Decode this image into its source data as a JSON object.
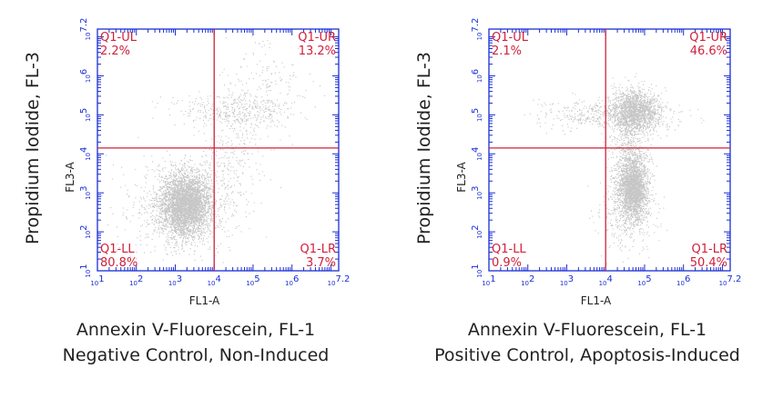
{
  "chart_data": [
    {
      "type": "scatter",
      "subtype": "flow-cytometry-density-quadrant",
      "xlabel": "FL1-A",
      "ylabel": "FL3-A",
      "outer_ylabel": "Propidium Iodide, FL-3",
      "caption_line1": "Annexin V-Fluorescein, FL-1",
      "caption_line2": "Negative Control, Non-Induced",
      "x_scale": "log",
      "y_scale": "log",
      "xlim": [
        1,
        7.2
      ],
      "ylim": [
        1,
        7.2
      ],
      "tick_labels": [
        "10^1",
        "10^2",
        "10^3",
        "10^4",
        "10^5",
        "10^6",
        "10^7.2"
      ],
      "quadrant_gate": {
        "x": 4.0,
        "y": 4.15
      },
      "quadrants": [
        {
          "name": "Q1-UL",
          "percent": "2.2%"
        },
        {
          "name": "Q1-UR",
          "percent": "13.2%"
        },
        {
          "name": "Q1-LL",
          "percent": "80.8%"
        },
        {
          "name": "Q1-LR",
          "percent": "3.7%"
        }
      ],
      "populations": [
        {
          "cx": 3.25,
          "cy": 2.7,
          "sx": 0.32,
          "sy": 0.4,
          "weight": 0.72
        },
        {
          "cx": 3.1,
          "cy": 2.6,
          "sx": 0.75,
          "sy": 0.7,
          "weight": 0.12
        },
        {
          "cx": 4.5,
          "cy": 5.1,
          "sx": 0.65,
          "sy": 0.22,
          "weight": 0.07
        },
        {
          "cx": 4.4,
          "cy": 3.8,
          "sx": 0.4,
          "sy": 0.7,
          "weight": 0.05
        },
        {
          "cx": 5.3,
          "cy": 5.6,
          "sx": 0.55,
          "sy": 0.6,
          "weight": 0.04
        }
      ],
      "colors": {
        "axis": "#1a2fd6",
        "gate": "#d0203a",
        "labels": "#d0203a",
        "dots": "#333333"
      }
    },
    {
      "type": "scatter",
      "subtype": "flow-cytometry-density-quadrant",
      "xlabel": "FL1-A",
      "ylabel": "FL3-A",
      "outer_ylabel": "Propidium Iodide, FL-3",
      "caption_line1": "Annexin V-Fluorescein, FL-1",
      "caption_line2": "Positive Control, Apoptosis-Induced",
      "x_scale": "log",
      "y_scale": "log",
      "xlim": [
        1,
        7.2
      ],
      "ylim": [
        1,
        7.2
      ],
      "tick_labels": [
        "10^1",
        "10^2",
        "10^3",
        "10^4",
        "10^5",
        "10^6",
        "10^7.2"
      ],
      "quadrant_gate": {
        "x": 4.0,
        "y": 4.15
      },
      "quadrants": [
        {
          "name": "Q1-UL",
          "percent": "2.1%"
        },
        {
          "name": "Q1-UR",
          "percent": "46.6%"
        },
        {
          "name": "Q1-LL",
          "percent": "0.9%"
        },
        {
          "name": "Q1-LR",
          "percent": "50.4%"
        }
      ],
      "populations": [
        {
          "cx": 4.7,
          "cy": 3.1,
          "sx": 0.18,
          "sy": 0.38,
          "weight": 0.42
        },
        {
          "cx": 4.75,
          "cy": 5.1,
          "sx": 0.3,
          "sy": 0.28,
          "weight": 0.3
        },
        {
          "cx": 4.1,
          "cy": 5.0,
          "sx": 0.9,
          "sy": 0.18,
          "weight": 0.1
        },
        {
          "cx": 4.6,
          "cy": 4.1,
          "sx": 0.25,
          "sy": 0.6,
          "weight": 0.1
        },
        {
          "cx": 4.6,
          "cy": 2.6,
          "sx": 0.35,
          "sy": 0.55,
          "weight": 0.08
        }
      ],
      "colors": {
        "axis": "#1a2fd6",
        "gate": "#d0203a",
        "labels": "#d0203a",
        "dots": "#333333"
      }
    }
  ]
}
